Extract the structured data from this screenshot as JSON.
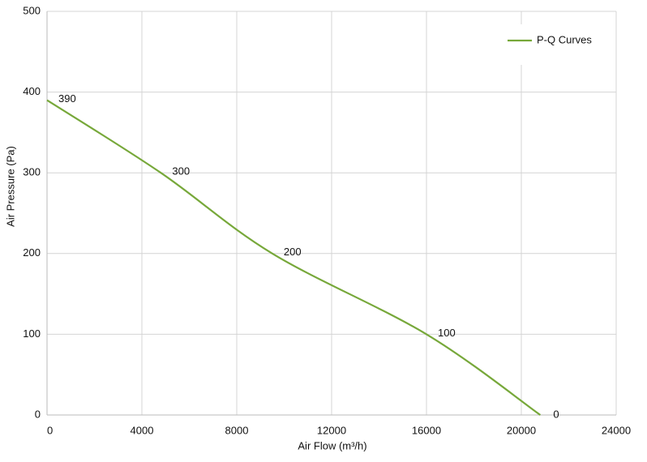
{
  "chart_data": {
    "type": "line",
    "x_label": "Air Flow  (m³/h)",
    "y_label": "Air Pressure  (Pa)",
    "series": [
      {
        "name": "P-Q Curves",
        "color": "#77a83a",
        "x": [
          0,
          4800,
          9500,
          16000,
          20800
        ],
        "values": [
          390,
          300,
          200,
          100,
          0
        ]
      }
    ],
    "xlim": [
      0,
      24000
    ],
    "xticks": [
      0,
      4000,
      8000,
      12000,
      16000,
      20000,
      24000
    ],
    "ylim": [
      0,
      500
    ],
    "yticks": [
      0,
      100,
      200,
      300,
      400,
      500
    ],
    "grid": true,
    "legend": "upper right",
    "data_labels": true
  }
}
